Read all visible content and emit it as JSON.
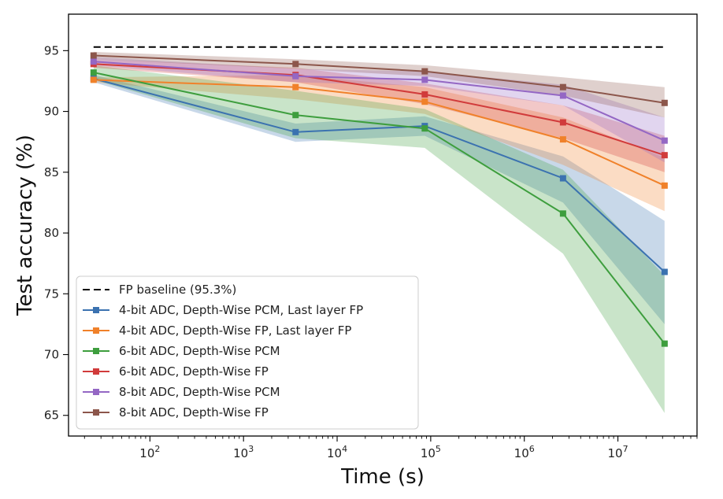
{
  "chart_data": {
    "type": "line",
    "title": "",
    "xlabel": "Time (s)",
    "ylabel": "Test accuracy (%)",
    "xscale": "log",
    "xlim": [
      13.5,
      70000000
    ],
    "ylim": [
      63.3,
      98
    ],
    "grid": false,
    "legend_position": "lower-left",
    "x": [
      25,
      3600,
      86400,
      2592000,
      31536000
    ],
    "xticks": [
      {
        "value": 100,
        "base": "10",
        "exp": "2"
      },
      {
        "value": 1000,
        "base": "10",
        "exp": "3"
      },
      {
        "value": 10000,
        "base": "10",
        "exp": "4"
      },
      {
        "value": 100000,
        "base": "10",
        "exp": "5"
      },
      {
        "value": 1000000,
        "base": "10",
        "exp": "6"
      },
      {
        "value": 10000000,
        "base": "10",
        "exp": "7"
      }
    ],
    "yticks": [
      65,
      70,
      75,
      80,
      85,
      90,
      95
    ],
    "baseline": {
      "name": "FP baseline (95.3%)",
      "value": 95.3,
      "color": "#000000"
    },
    "series": [
      {
        "name": "4-bit ADC, Depth-Wise PCM, Last layer FP",
        "color": "#3b72b0",
        "values": [
          92.7,
          88.3,
          88.8,
          84.5,
          76.8
        ],
        "lower": [
          92.4,
          87.5,
          88.0,
          82.5,
          72.5
        ],
        "upper": [
          93.0,
          89.0,
          89.6,
          86.3,
          81.0
        ]
      },
      {
        "name": "4-bit ADC, Depth-Wise FP, Last layer FP",
        "color": "#f0812a",
        "values": [
          92.6,
          92.0,
          90.8,
          87.7,
          83.9
        ],
        "lower": [
          92.4,
          91.0,
          89.8,
          85.6,
          81.8
        ],
        "upper": [
          92.8,
          93.0,
          92.0,
          89.5,
          86.2
        ]
      },
      {
        "name": "6-bit ADC, Depth-Wise PCM",
        "color": "#3e9e3e",
        "values": [
          93.2,
          89.7,
          88.6,
          81.6,
          70.9
        ],
        "lower": [
          92.6,
          87.8,
          87.0,
          78.3,
          65.2
        ],
        "upper": [
          93.8,
          91.7,
          90.2,
          85.2,
          76.5
        ]
      },
      {
        "name": "6-bit ADC, Depth-Wise FP",
        "color": "#d13b3b",
        "values": [
          93.9,
          93.0,
          91.4,
          89.1,
          86.4
        ],
        "lower": [
          93.6,
          92.4,
          90.6,
          87.8,
          85.0
        ],
        "upper": [
          94.3,
          93.6,
          92.3,
          90.5,
          88.0
        ]
      },
      {
        "name": "8-bit ADC, Depth-Wise PCM",
        "color": "#9467c4",
        "values": [
          94.1,
          92.9,
          92.6,
          91.3,
          87.6
        ],
        "lower": [
          93.8,
          92.4,
          92.1,
          90.5,
          85.8
        ],
        "upper": [
          94.5,
          93.5,
          93.3,
          92.2,
          89.5
        ]
      },
      {
        "name": "8-bit ADC, Depth-Wise FP",
        "color": "#8c564b",
        "values": [
          94.6,
          93.9,
          93.3,
          92.0,
          90.7
        ],
        "lower": [
          94.3,
          93.5,
          92.9,
          91.3,
          89.5
        ],
        "upper": [
          94.9,
          94.3,
          93.8,
          92.8,
          92.0
        ]
      }
    ]
  }
}
